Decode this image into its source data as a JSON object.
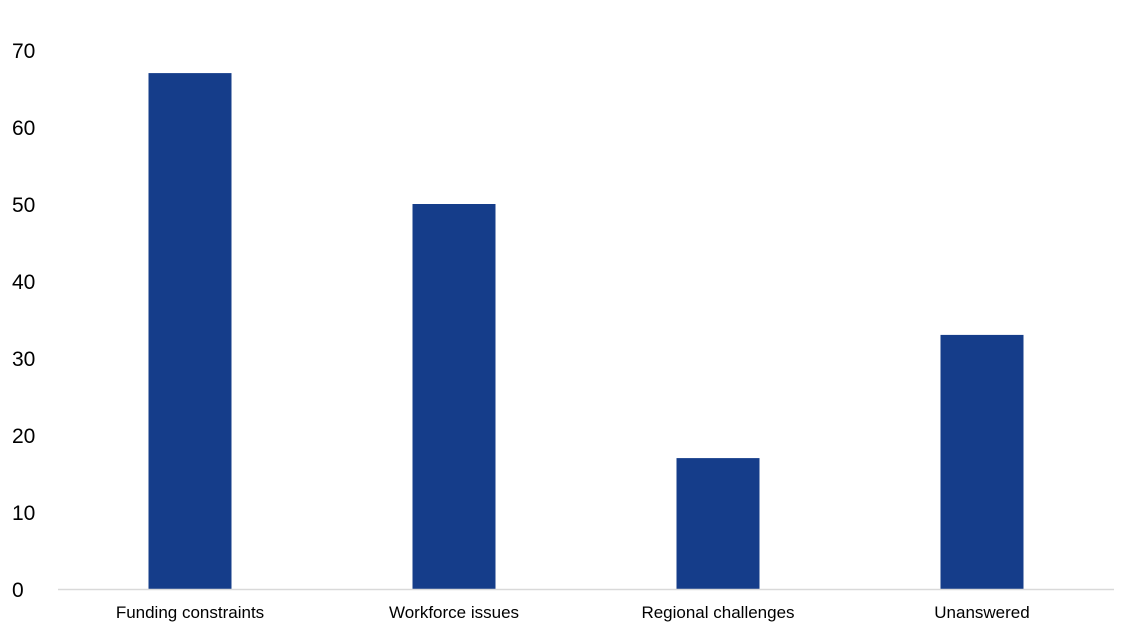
{
  "chart_data": {
    "type": "bar",
    "title": "",
    "xlabel": "",
    "ylabel": "",
    "categories": [
      "Funding constraints",
      "Workforce issues",
      "Regional challenges",
      "Unanswered"
    ],
    "values": [
      67,
      50,
      17,
      33
    ],
    "ylim": [
      0,
      70
    ],
    "yticks": [
      0,
      10,
      20,
      30,
      40,
      50,
      60,
      70
    ],
    "grid": false,
    "legend": "none",
    "bar_color": "#153D8A",
    "axis_color": "#D9D9D9"
  }
}
